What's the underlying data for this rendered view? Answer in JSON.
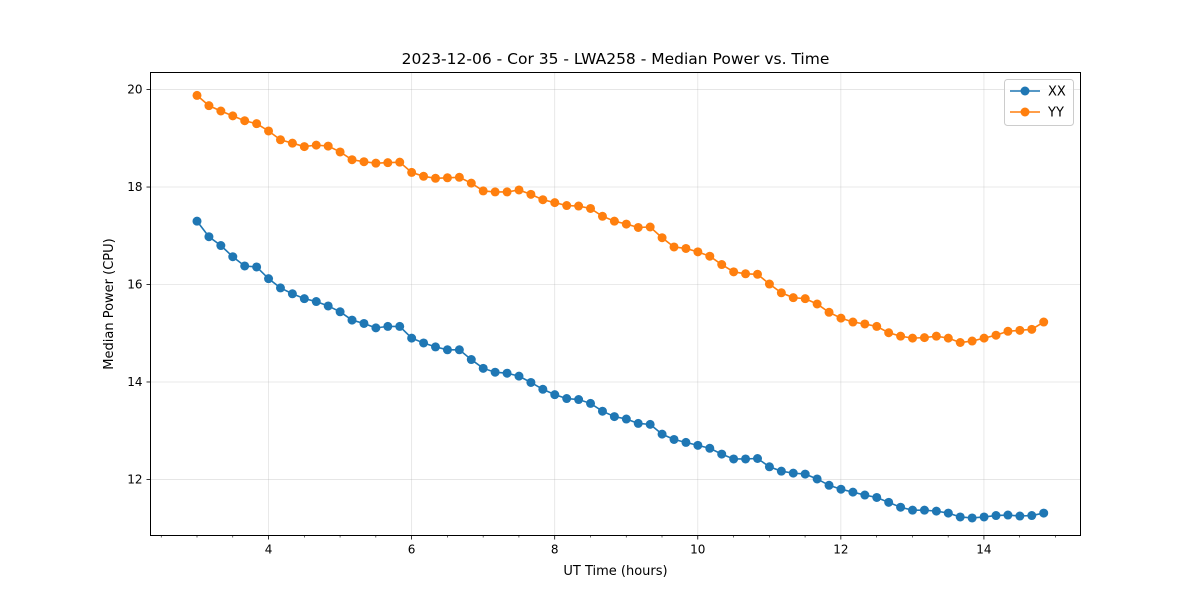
{
  "chart_data": {
    "type": "line",
    "title": "2023-12-06 - Cor 35 - LWA258 - Median Power vs. Time",
    "xlabel": "UT Time (hours)",
    "ylabel": "Median Power (CPU)",
    "xlim": [
      2.35,
      15.35
    ],
    "ylim": [
      10.85,
      20.35
    ],
    "xticks": [
      4,
      6,
      8,
      10,
      12,
      14
    ],
    "xtick_labels": [
      "4",
      "6",
      "8",
      "10",
      "12",
      "14"
    ],
    "yticks": [
      12,
      14,
      16,
      18,
      20
    ],
    "ytick_labels": [
      "12",
      "14",
      "16",
      "18",
      "20"
    ],
    "grid": true,
    "legend_position": "top-right",
    "x_start": 3.0,
    "x_step": 0.1667,
    "series": [
      {
        "name": "XX",
        "color": "#1f77b4",
        "values": [
          17.3,
          16.98,
          16.8,
          16.57,
          16.38,
          16.36,
          16.12,
          15.93,
          15.81,
          15.71,
          15.65,
          15.56,
          15.44,
          15.27,
          15.2,
          15.11,
          15.14,
          15.14,
          14.9,
          14.8,
          14.72,
          14.66,
          14.66,
          14.46,
          14.28,
          14.2,
          14.18,
          14.12,
          13.99,
          13.85,
          13.74,
          13.66,
          13.64,
          13.56,
          13.4,
          13.29,
          13.24,
          13.15,
          13.13,
          12.93,
          12.82,
          12.76,
          12.7,
          12.64,
          12.52,
          12.42,
          12.42,
          12.43,
          12.26,
          12.17,
          12.13,
          12.11,
          12.01,
          11.88,
          11.8,
          11.74,
          11.68,
          11.63,
          11.53,
          11.43,
          11.37,
          11.37,
          11.35,
          11.31,
          11.23,
          11.21,
          11.23,
          11.26,
          11.27,
          11.25,
          11.26,
          11.31
        ]
      },
      {
        "name": "YY",
        "color": "#ff7f0e",
        "values": [
          19.88,
          19.67,
          19.56,
          19.46,
          19.36,
          19.3,
          19.15,
          18.97,
          18.9,
          18.83,
          18.86,
          18.84,
          18.72,
          18.56,
          18.52,
          18.49,
          18.5,
          18.51,
          18.3,
          18.22,
          18.18,
          18.19,
          18.2,
          18.08,
          17.92,
          17.9,
          17.9,
          17.94,
          17.85,
          17.74,
          17.68,
          17.62,
          17.61,
          17.56,
          17.4,
          17.3,
          17.24,
          17.17,
          17.18,
          16.96,
          16.77,
          16.74,
          16.67,
          16.58,
          16.41,
          16.26,
          16.22,
          16.21,
          16.01,
          15.83,
          15.73,
          15.71,
          15.6,
          15.43,
          15.31,
          15.23,
          15.19,
          15.14,
          15.01,
          14.94,
          14.9,
          14.91,
          14.94,
          14.9,
          14.81,
          14.84,
          14.9,
          14.96,
          15.04,
          15.06,
          15.08,
          15.23
        ]
      }
    ]
  }
}
